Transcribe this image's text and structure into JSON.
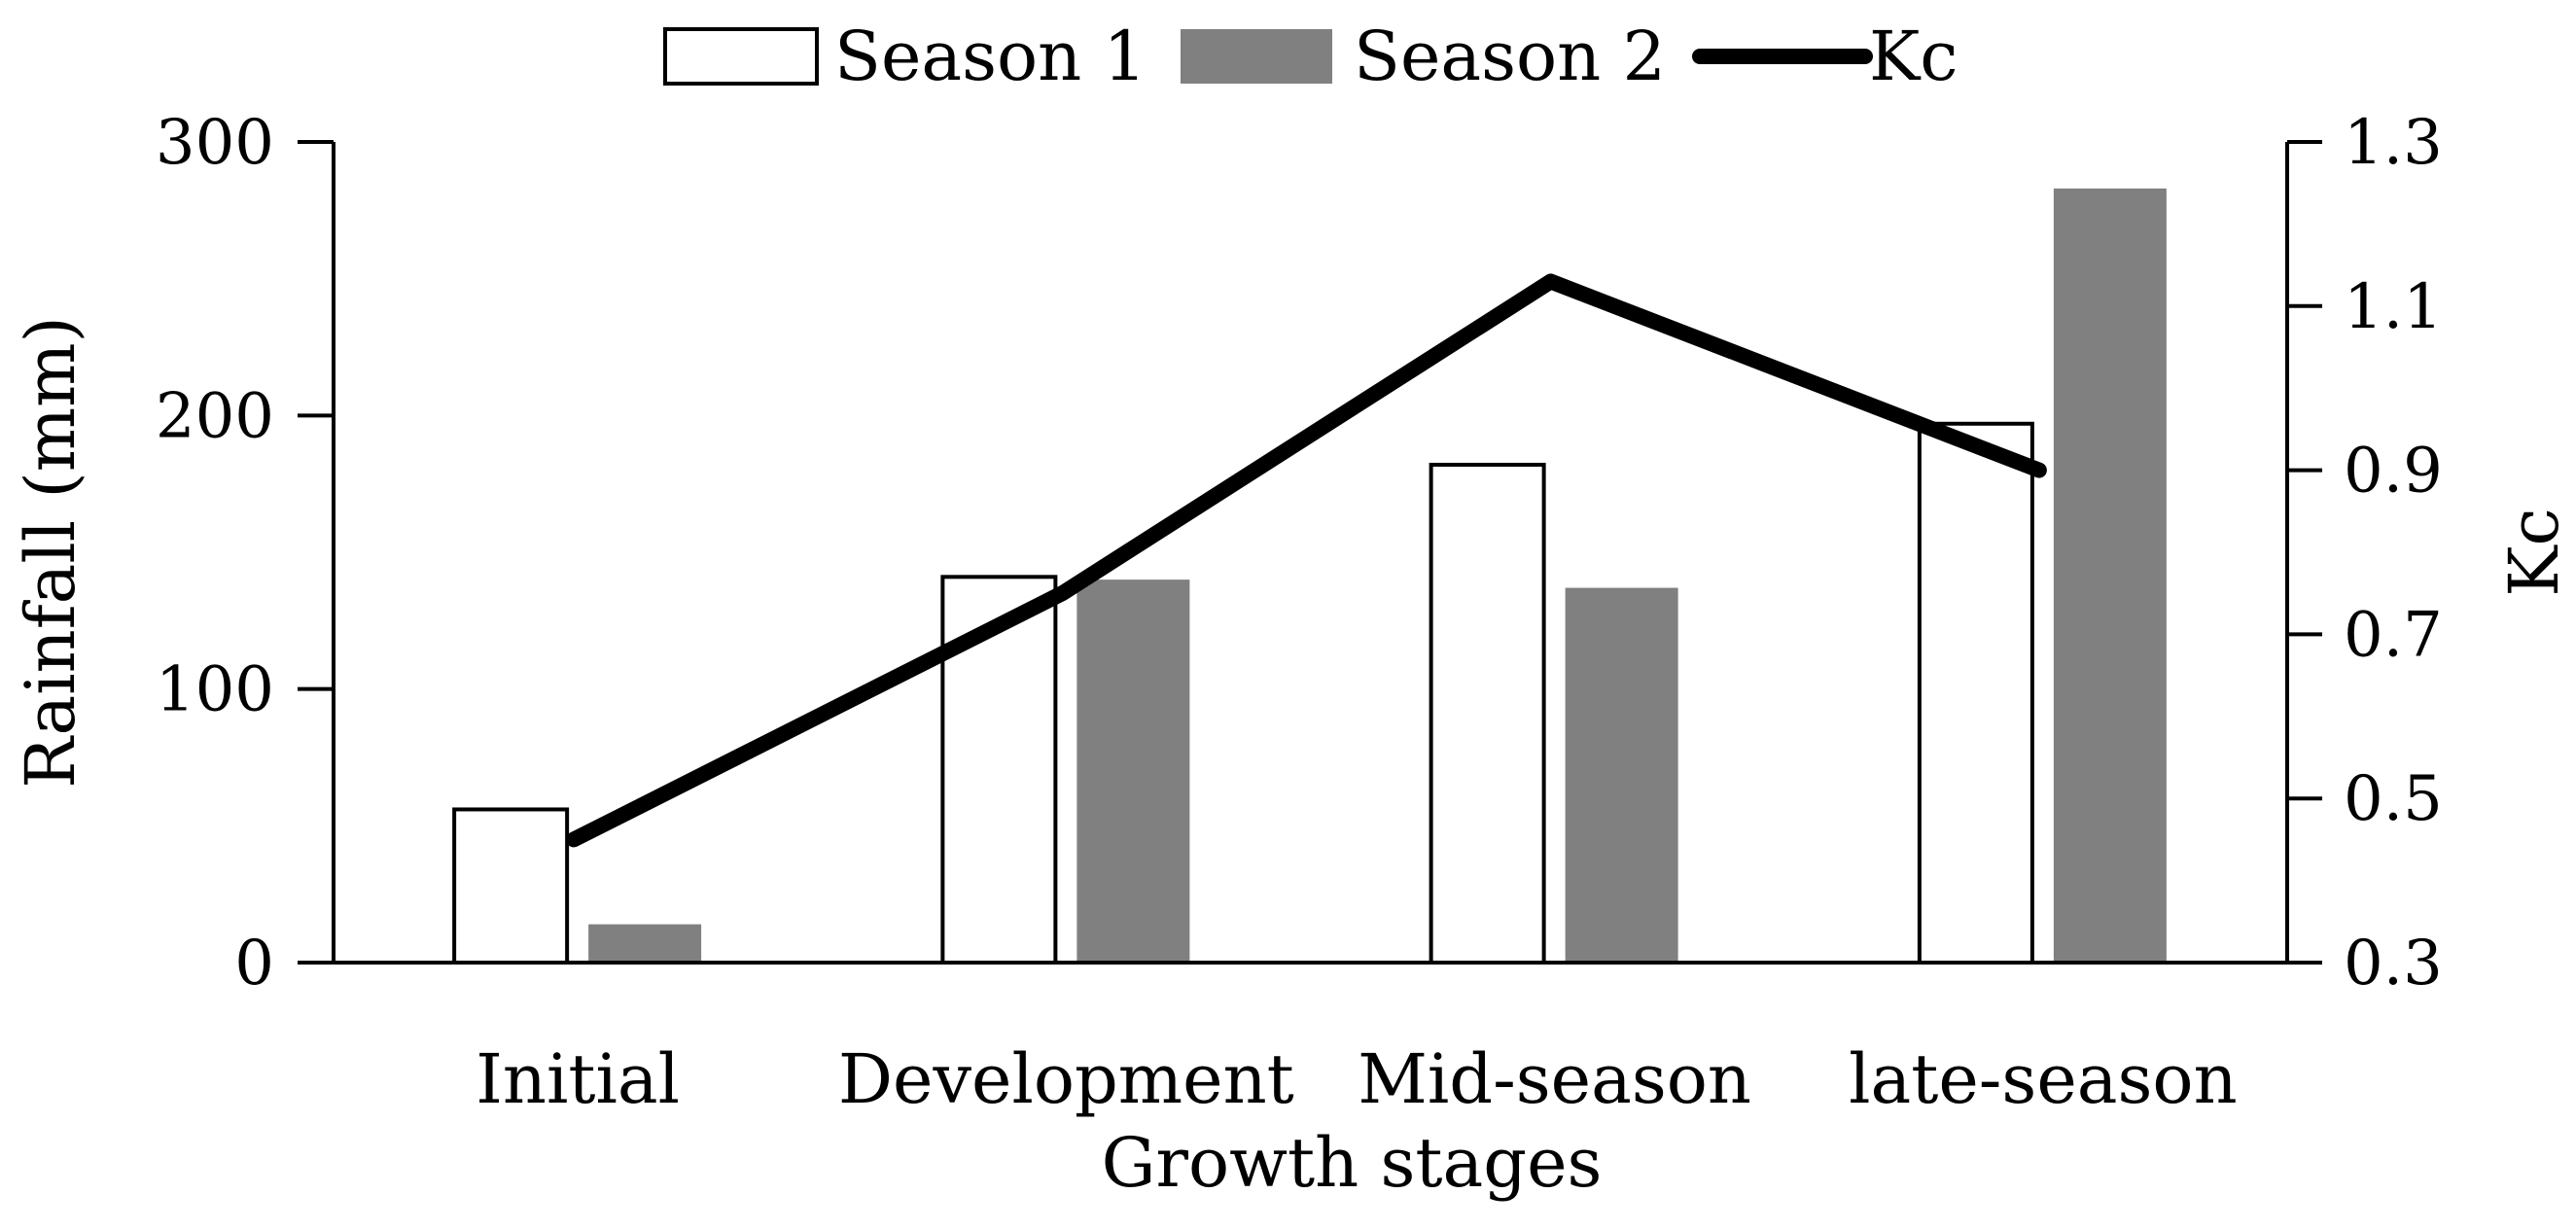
{
  "chart_data": {
    "type": "bar",
    "title": "",
    "xlabel": "Growth stages",
    "ylabel": "Rainfall (mm)",
    "y2label": "Kc",
    "categories": [
      "Initial",
      "Development",
      "Mid-season",
      "late-season"
    ],
    "ylim": [
      0,
      300
    ],
    "y2lim": [
      0.3,
      1.3
    ],
    "yticks": [
      "0",
      "100",
      "200",
      "300"
    ],
    "y2ticks": [
      "0.3",
      "0.5",
      "0.7",
      "0.9",
      "1.1",
      "1.3"
    ],
    "series": [
      {
        "name": "Season 1",
        "kind": "bar",
        "fill": "#ffffff",
        "stroke": "#000000",
        "values": [
          56,
          141,
          182,
          197
        ]
      },
      {
        "name": "Season 2",
        "kind": "bar",
        "fill": "#808080",
        "stroke": "none",
        "values": [
          14,
          140,
          137,
          283
        ]
      },
      {
        "name": "Kc",
        "kind": "line",
        "axis": "right",
        "color": "#000000",
        "values": [
          0.45,
          0.75,
          1.13,
          0.9
        ]
      }
    ],
    "legend_position": "top"
  }
}
